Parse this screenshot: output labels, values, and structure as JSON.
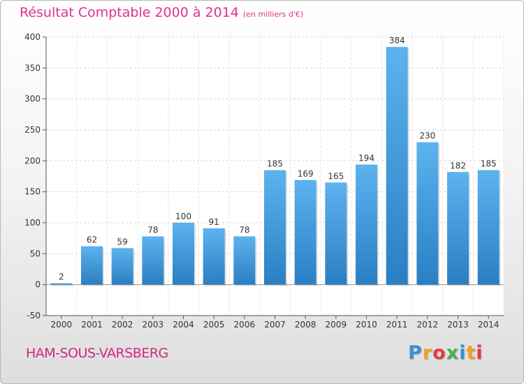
{
  "chart_data": {
    "type": "bar",
    "title": "Résultat Comptable 2000 à 2014",
    "subtitle": "(en milliers d'€)",
    "xlabel": "",
    "ylabel": "",
    "categories": [
      "2000",
      "2001",
      "2002",
      "2003",
      "2004",
      "2005",
      "2006",
      "2007",
      "2008",
      "2009",
      "2010",
      "2011",
      "2012",
      "2013",
      "2014"
    ],
    "values": [
      2,
      62,
      59,
      78,
      100,
      91,
      78,
      185,
      169,
      165,
      194,
      384,
      230,
      182,
      185
    ],
    "ylim": [
      -50,
      400
    ],
    "yticks": [
      -50,
      0,
      50,
      100,
      150,
      200,
      250,
      300,
      350,
      400
    ],
    "grid": true,
    "bar_color": "#3a95d8"
  },
  "footer": {
    "commune": "HAM-SOUS-VARSBERG",
    "brand_letters": [
      "P",
      "r",
      "o",
      "x",
      "i",
      "t",
      "i"
    ]
  },
  "colors": {
    "title": "#e0318a",
    "commune": "#d0287e"
  }
}
